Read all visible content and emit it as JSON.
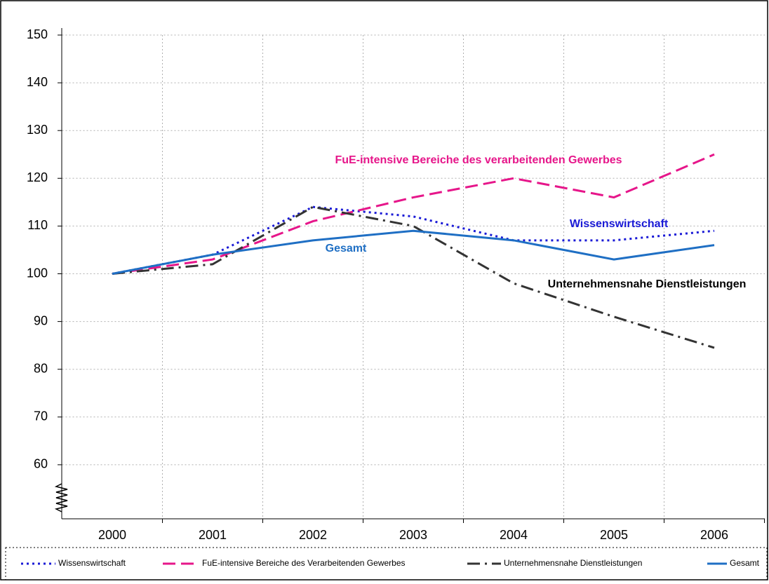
{
  "chart_data": {
    "type": "line",
    "categories": [
      "2000",
      "2001",
      "2002",
      "2003",
      "2004",
      "2005",
      "2006"
    ],
    "series": [
      {
        "name": "Wissenswirtschaft",
        "color": "#1a1ad6",
        "dash": "3 5",
        "values": [
          100,
          104,
          114,
          112,
          107,
          107,
          109
        ]
      },
      {
        "name": "FuE-intensive Bereiche des Verarbeitenden Gewerbes",
        "color": "#e6168a",
        "dash": "18 8",
        "values": [
          100,
          103,
          111,
          116,
          120,
          116,
          125
        ]
      },
      {
        "name": "Unternehmensnahe Dienstleistungen",
        "color": "#333333",
        "dash": "18 7 3 7",
        "values": [
          100,
          102,
          114,
          110,
          98,
          91,
          84.5
        ]
      },
      {
        "name": "Gesamt",
        "color": "#1f6fc4",
        "dash": "none",
        "values": [
          100,
          104,
          107,
          109,
          107,
          103,
          106
        ]
      }
    ],
    "annotations": [
      {
        "text": "FuE-intensive Bereiche des verarbeitenden Gewerbes",
        "series": 1
      },
      {
        "text": "Wissenswirtschaft",
        "series": 0
      },
      {
        "text": "Gesamt",
        "series": 3
      },
      {
        "text": "Unternehmensnahe Dienstleistungen",
        "series": 2
      }
    ],
    "ylim": [
      50,
      150
    ],
    "yticks": [
      60,
      70,
      80,
      90,
      100,
      110,
      120,
      130,
      140,
      150
    ],
    "grid": true
  }
}
